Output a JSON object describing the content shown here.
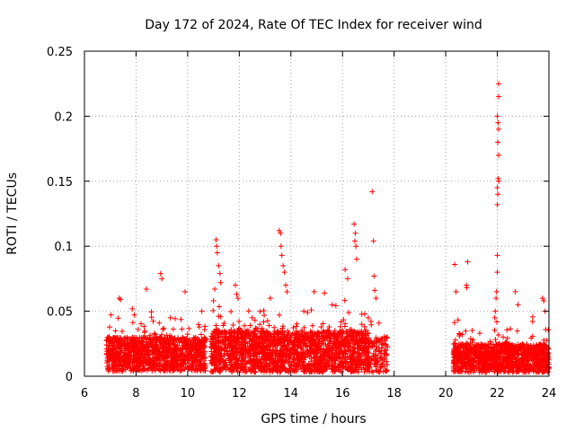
{
  "chart_data": {
    "type": "scatter",
    "title": "Day 172 of 2024, Rate Of TEC Index for receiver wind",
    "xlabel": "GPS time / hours",
    "ylabel": "ROTI / TECUs",
    "xlim": [
      6,
      24
    ],
    "ylim": [
      0,
      0.25
    ],
    "xticks": [
      6,
      8,
      10,
      12,
      14,
      16,
      18,
      20,
      22,
      24
    ],
    "xtick_labels": [
      "6",
      "8",
      "10",
      "12",
      "14",
      "16",
      "18",
      "20",
      "22",
      "24"
    ],
    "yticks": [
      0,
      0.05,
      0.1,
      0.15,
      0.2,
      0.25
    ],
    "ytick_labels": [
      "0",
      "0.05",
      "0.1",
      "0.15",
      "0.2",
      "0.25"
    ],
    "grid": true,
    "marker": "+",
    "color": "#ff0000",
    "series": [
      {
        "name": "ROTI",
        "segments": [
          {
            "t0": 6.85,
            "t1": 10.7,
            "base_lo": 0.004,
            "base_hi": 0.03,
            "density": 320
          },
          {
            "t0": 10.9,
            "t1": 17.0,
            "base_lo": 0.003,
            "base_hi": 0.035,
            "density": 320
          },
          {
            "t0": 17.0,
            "t1": 17.75,
            "base_lo": 0.003,
            "base_hi": 0.03,
            "density": 160
          },
          {
            "t0": 20.3,
            "t1": 24.0,
            "base_lo": 0.003,
            "base_hi": 0.025,
            "density": 320
          }
        ],
        "spikes": [
          {
            "x": 7.35,
            "y": 0.06
          },
          {
            "x": 7.4,
            "y": 0.059
          },
          {
            "x": 8.4,
            "y": 0.067
          },
          {
            "x": 8.95,
            "y": 0.079
          },
          {
            "x": 9.0,
            "y": 0.075
          },
          {
            "x": 9.9,
            "y": 0.065
          },
          {
            "x": 10.55,
            "y": 0.05
          },
          {
            "x": 11.0,
            "y": 0.058
          },
          {
            "x": 11.05,
            "y": 0.067
          },
          {
            "x": 11.1,
            "y": 0.105
          },
          {
            "x": 11.12,
            "y": 0.1
          },
          {
            "x": 11.15,
            "y": 0.095
          },
          {
            "x": 11.2,
            "y": 0.085
          },
          {
            "x": 11.25,
            "y": 0.079
          },
          {
            "x": 11.28,
            "y": 0.072
          },
          {
            "x": 11.85,
            "y": 0.07
          },
          {
            "x": 11.9,
            "y": 0.063
          },
          {
            "x": 11.95,
            "y": 0.06
          },
          {
            "x": 12.5,
            "y": 0.045
          },
          {
            "x": 13.2,
            "y": 0.06
          },
          {
            "x": 13.55,
            "y": 0.112
          },
          {
            "x": 13.6,
            "y": 0.11
          },
          {
            "x": 13.62,
            "y": 0.1
          },
          {
            "x": 13.65,
            "y": 0.093
          },
          {
            "x": 13.7,
            "y": 0.085
          },
          {
            "x": 13.75,
            "y": 0.08
          },
          {
            "x": 13.8,
            "y": 0.07
          },
          {
            "x": 13.85,
            "y": 0.065
          },
          {
            "x": 14.5,
            "y": 0.05
          },
          {
            "x": 14.9,
            "y": 0.065
          },
          {
            "x": 15.3,
            "y": 0.064
          },
          {
            "x": 15.6,
            "y": 0.055
          },
          {
            "x": 16.1,
            "y": 0.082
          },
          {
            "x": 16.2,
            "y": 0.075
          },
          {
            "x": 16.45,
            "y": 0.117
          },
          {
            "x": 16.5,
            "y": 0.11
          },
          {
            "x": 16.48,
            "y": 0.104
          },
          {
            "x": 16.52,
            "y": 0.1
          },
          {
            "x": 16.55,
            "y": 0.09
          },
          {
            "x": 17.15,
            "y": 0.142
          },
          {
            "x": 17.2,
            "y": 0.104
          },
          {
            "x": 17.22,
            "y": 0.077
          },
          {
            "x": 17.25,
            "y": 0.066
          },
          {
            "x": 17.3,
            "y": 0.06
          },
          {
            "x": 17.0,
            "y": 0.045
          },
          {
            "x": 20.35,
            "y": 0.086
          },
          {
            "x": 20.4,
            "y": 0.065
          },
          {
            "x": 20.85,
            "y": 0.088
          },
          {
            "x": 20.8,
            "y": 0.07
          },
          {
            "x": 20.82,
            "y": 0.068
          },
          {
            "x": 21.9,
            "y": 0.045
          },
          {
            "x": 21.92,
            "y": 0.05
          },
          {
            "x": 21.95,
            "y": 0.06
          },
          {
            "x": 21.97,
            "y": 0.065
          },
          {
            "x": 22.0,
            "y": 0.08
          },
          {
            "x": 22.0,
            "y": 0.093
          },
          {
            "x": 22.0,
            "y": 0.132
          },
          {
            "x": 22.02,
            "y": 0.14
          },
          {
            "x": 22.0,
            "y": 0.145
          },
          {
            "x": 22.05,
            "y": 0.15
          },
          {
            "x": 22.03,
            "y": 0.152
          },
          {
            "x": 22.05,
            "y": 0.17
          },
          {
            "x": 22.02,
            "y": 0.18
          },
          {
            "x": 22.05,
            "y": 0.19
          },
          {
            "x": 22.03,
            "y": 0.195
          },
          {
            "x": 22.0,
            "y": 0.2
          },
          {
            "x": 22.05,
            "y": 0.215
          },
          {
            "x": 22.05,
            "y": 0.225
          },
          {
            "x": 22.7,
            "y": 0.065
          },
          {
            "x": 22.8,
            "y": 0.055
          },
          {
            "x": 23.75,
            "y": 0.06
          },
          {
            "x": 23.8,
            "y": 0.058
          },
          {
            "x": 23.85,
            "y": 0.05
          }
        ]
      }
    ]
  }
}
